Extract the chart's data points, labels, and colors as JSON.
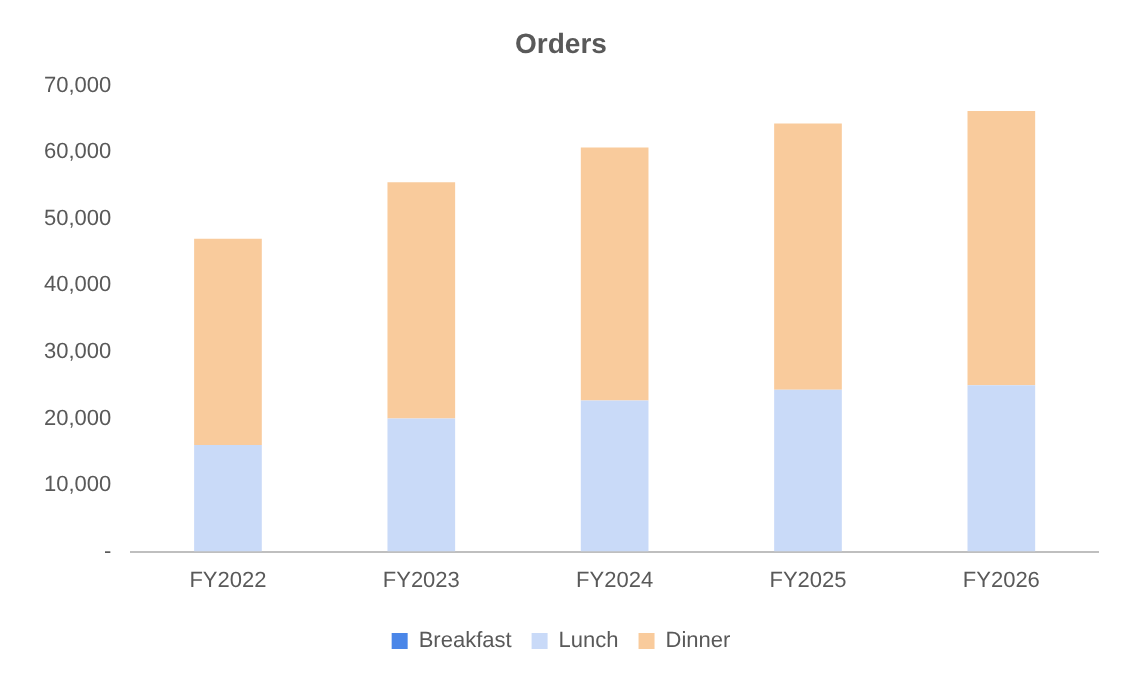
{
  "chart_data": {
    "type": "bar",
    "title": "Orders",
    "categories": [
      "FY2022",
      "FY2023",
      "FY2024",
      "FY2025",
      "FY2026"
    ],
    "stacked": true,
    "legend": "bottom",
    "grid": false,
    "series": [
      {
        "name": "Breakfast",
        "color": "#4a86e8",
        "values": [
          0,
          0,
          0,
          0,
          0
        ]
      },
      {
        "name": "Lunch",
        "color": "#c9daf8",
        "values": [
          16000,
          20000,
          22700,
          24300,
          25000
        ]
      },
      {
        "name": "Dinner",
        "color": "#f9cb9c",
        "values": [
          31000,
          35500,
          38000,
          40000,
          41200
        ]
      }
    ],
    "ylim": [
      0,
      70000
    ],
    "yticks": [
      {
        "value": 0,
        "label": "-"
      },
      {
        "value": 10000,
        "label": "10,000"
      },
      {
        "value": 20000,
        "label": "20,000"
      },
      {
        "value": 30000,
        "label": "30,000"
      },
      {
        "value": 40000,
        "label": "40,000"
      },
      {
        "value": 50000,
        "label": "50,000"
      },
      {
        "value": 60000,
        "label": "60,000"
      },
      {
        "value": 70000,
        "label": "70,000"
      }
    ]
  }
}
